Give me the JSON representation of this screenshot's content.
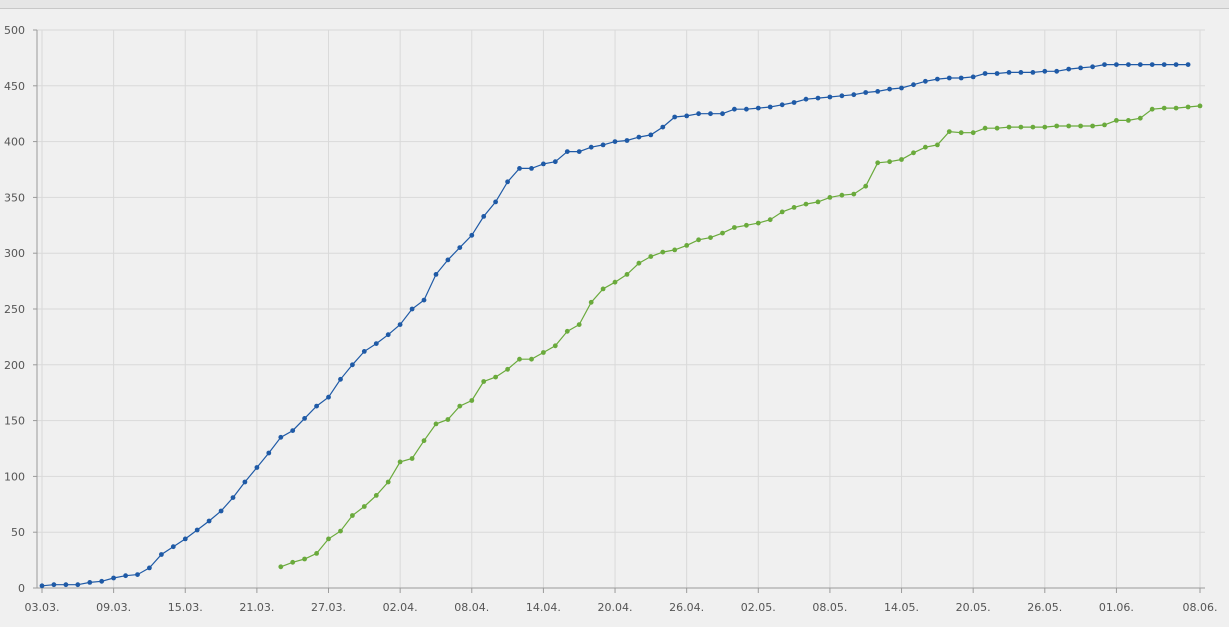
{
  "chart_data": {
    "type": "line",
    "title": "",
    "xlabel": "",
    "ylabel": "",
    "ylim": [
      0,
      500
    ],
    "y_ticks": [
      0,
      50,
      100,
      150,
      200,
      250,
      300,
      350,
      400,
      450,
      500
    ],
    "x_range": [
      "2020-03-03",
      "2020-06-08"
    ],
    "x_ticks": [
      {
        "date": "2020-03-03",
        "label": "03.03."
      },
      {
        "date": "2020-03-09",
        "label": "09.03."
      },
      {
        "date": "2020-03-15",
        "label": "15.03."
      },
      {
        "date": "2020-03-21",
        "label": "21.03."
      },
      {
        "date": "2020-03-27",
        "label": "27.03."
      },
      {
        "date": "2020-04-02",
        "label": "02.04."
      },
      {
        "date": "2020-04-08",
        "label": "08.04."
      },
      {
        "date": "2020-04-14",
        "label": "14.04."
      },
      {
        "date": "2020-04-20",
        "label": "20.04."
      },
      {
        "date": "2020-04-26",
        "label": "26.04."
      },
      {
        "date": "2020-05-02",
        "label": "02.05."
      },
      {
        "date": "2020-05-08",
        "label": "08.05."
      },
      {
        "date": "2020-05-14",
        "label": "14.05."
      },
      {
        "date": "2020-05-20",
        "label": "20.05."
      },
      {
        "date": "2020-05-26",
        "label": "26.05."
      },
      {
        "date": "2020-06-01",
        "label": "01.06."
      },
      {
        "date": "2020-06-08",
        "label": "08.06."
      }
    ],
    "grid": true,
    "legend": "none",
    "series": [
      {
        "color": "#1f5aa6",
        "start_date": "2020-03-03",
        "values": [
          2,
          3,
          3,
          3,
          5,
          6,
          9,
          11,
          12,
          18,
          30,
          37,
          44,
          52,
          60,
          69,
          81,
          95,
          108,
          121,
          135,
          141,
          152,
          163,
          171,
          187,
          200,
          212,
          219,
          227,
          236,
          250,
          258,
          281,
          294,
          305,
          316,
          333,
          346,
          364,
          376,
          376,
          380,
          382,
          391,
          391,
          395,
          397,
          400,
          401,
          404,
          406,
          413,
          422,
          423,
          425,
          425,
          425,
          429,
          429,
          430,
          431,
          433,
          435,
          438,
          439,
          440,
          441,
          442,
          444,
          445,
          447,
          448,
          451,
          454,
          456,
          457,
          457,
          458,
          461,
          461,
          462,
          462,
          462,
          463,
          463,
          465,
          466,
          467,
          469,
          469,
          469,
          469,
          469,
          469,
          469,
          469
        ]
      },
      {
        "color": "#6aaa3c",
        "start_date": "2020-03-23",
        "values": [
          19,
          23,
          26,
          31,
          44,
          51,
          65,
          73,
          83,
          95,
          113,
          116,
          132,
          147,
          151,
          163,
          168,
          185,
          189,
          196,
          205,
          205,
          211,
          217,
          230,
          236,
          256,
          268,
          274,
          281,
          291,
          297,
          301,
          303,
          307,
          312,
          314,
          318,
          323,
          325,
          327,
          330,
          337,
          341,
          344,
          346,
          350,
          352,
          353,
          360,
          381,
          382,
          384,
          390,
          395,
          397,
          409,
          408,
          408,
          412,
          412,
          413,
          413,
          413,
          413,
          414,
          414,
          414,
          414,
          415,
          419,
          419,
          421,
          429,
          430,
          430,
          431,
          432
        ]
      }
    ]
  }
}
